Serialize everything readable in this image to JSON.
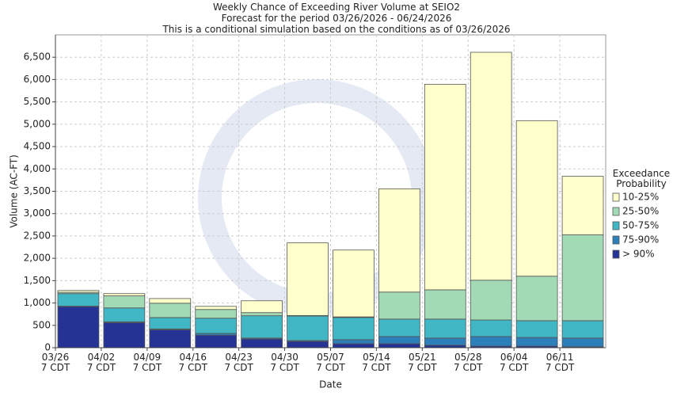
{
  "chart_data": {
    "type": "stacked_bar",
    "title": "Weekly Chance of Exceeding River Volume at SEIO2",
    "subtitle": "Forecast for the period 03/26/2026 - 06/24/2026",
    "note": "This is a conditional simulation based on the conditions as of 03/26/2026",
    "x_label": "Date",
    "y_label": "Volume (AC-FT)",
    "legend_title": "Exceedance\nProbability",
    "categories": [
      "03/26\n7 CDT",
      "04/02\n7 CDT",
      "04/09\n7 CDT",
      "04/16\n7 CDT",
      "04/23\n7 CDT",
      "04/30\n7 CDT",
      "05/07\n7 CDT",
      "05/14\n7 CDT",
      "05/21\n7 CDT",
      "05/28\n7 CDT",
      "06/04\n7 CDT",
      "06/11\n7 CDT"
    ],
    "series": [
      {
        "name": "> 90%",
        "color": "#253494",
        "values": [
          920,
          560,
          400,
          280,
          195,
          140,
          90,
          90,
          55,
          35,
          35,
          20
        ]
      },
      {
        "name": "75-90%",
        "color": "#2c7fb8",
        "values": [
          10,
          20,
          20,
          40,
          20,
          20,
          90,
          160,
          160,
          215,
          195,
          195
        ]
      },
      {
        "name": "50-75%",
        "color": "#41b6c4",
        "values": [
          280,
          310,
          255,
          340,
          500,
          550,
          495,
          390,
          425,
          370,
          375,
          390
        ]
      },
      {
        "name": "25-50%",
        "color": "#a1dab4",
        "values": [
          30,
          270,
          320,
          195,
          70,
          10,
          15,
          605,
          655,
          890,
          995,
          1920
        ]
      },
      {
        "name": "10-25%",
        "color": "#ffffcc",
        "values": [
          40,
          50,
          105,
          70,
          265,
          1625,
          1495,
          2310,
          4600,
          5100,
          3480,
          1310
        ]
      }
    ],
    "ylim": [
      0,
      7000
    ],
    "yticks": [
      0,
      500,
      {
        "value": 1000,
        "label": "1,000"
      },
      {
        "value": 1500,
        "label": "1,500"
      },
      {
        "value": 2000,
        "label": "2,000"
      },
      {
        "value": 2500,
        "label": "2,500"
      },
      {
        "value": 3000,
        "label": "3,000"
      },
      {
        "value": 3500,
        "label": "3,500"
      },
      {
        "value": 4000,
        "label": "4,000"
      },
      {
        "value": 4500,
        "label": "4,500"
      },
      {
        "value": 5000,
        "label": "5,000"
      },
      {
        "value": 5500,
        "label": "5,500"
      },
      {
        "value": 6000,
        "label": "6,000"
      },
      {
        "value": 6500,
        "label": "6,500"
      }
    ],
    "grid": true,
    "legend": "right"
  }
}
